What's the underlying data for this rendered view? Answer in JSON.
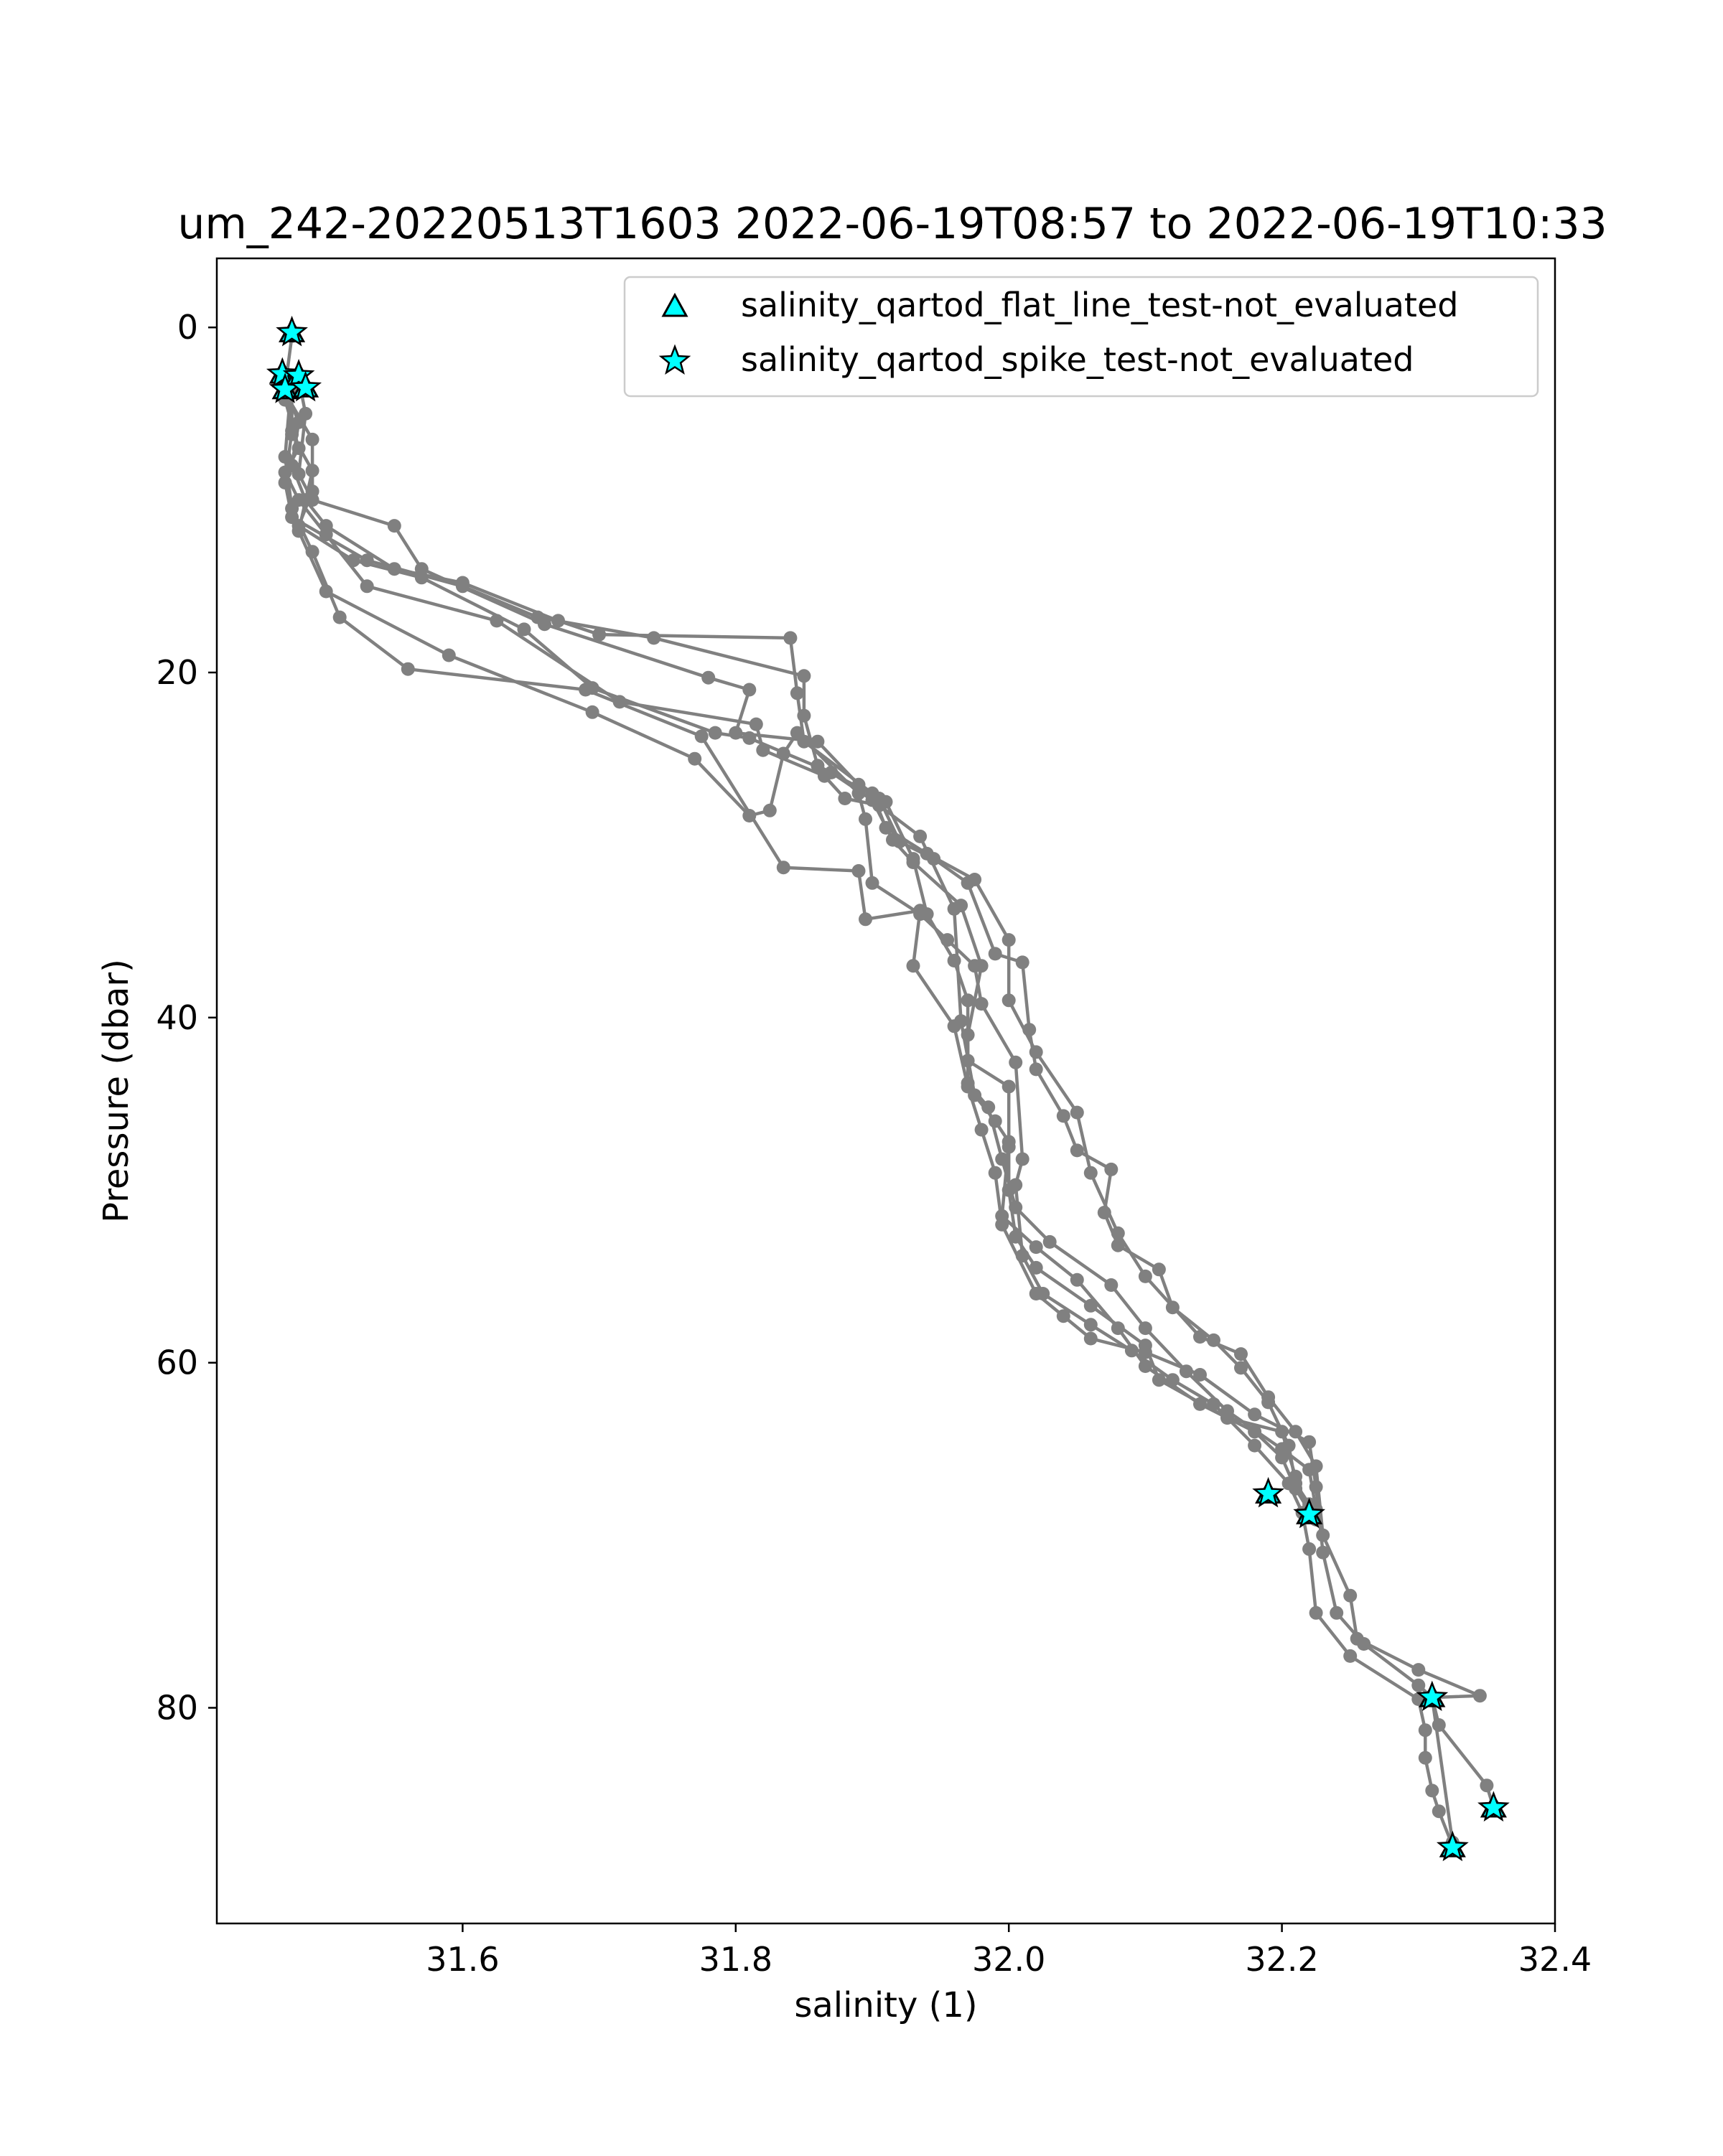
{
  "chart_data": {
    "type": "line",
    "title": "um_242-20220513T1603 2022-06-19T08:57 to 2022-06-19T10:33",
    "xlabel": "salinity (1)",
    "ylabel": "Pressure (dbar)",
    "xlim": [
      31.42,
      32.4
    ],
    "ylim": [
      92.5,
      -4
    ],
    "y_inverted": true,
    "grid": false,
    "xticks": [
      31.6,
      31.8,
      32.0,
      32.2,
      32.4
    ],
    "xtick_labels": [
      "31.6",
      "31.8",
      "32.0",
      "32.2",
      "32.4"
    ],
    "yticks": [
      0,
      20,
      40,
      60,
      80
    ],
    "ytick_labels": [
      "0",
      "20",
      "40",
      "60",
      "80"
    ],
    "legend_position": "upper right",
    "legend": [
      {
        "label": "salinity_qartod_flat_line_test-not_evaluated",
        "marker": "triangle",
        "color": "#00ffff"
      },
      {
        "label": "salinity_qartod_spike_test-not_evaluated",
        "marker": "star",
        "color": "#00ffff"
      }
    ],
    "profile_color": "#808080",
    "flag_color": "#00ffff",
    "series": [
      {
        "values": [
          [
            31.475,
            0.5
          ],
          [
            31.47,
            3.5
          ],
          [
            31.48,
            5.5
          ],
          [
            31.475,
            8
          ],
          [
            31.485,
            10
          ],
          [
            31.5,
            11.5
          ],
          [
            31.55,
            14
          ],
          [
            31.6,
            14.8
          ],
          [
            31.67,
            17
          ],
          [
            31.7,
            17.8
          ],
          [
            31.84,
            18
          ],
          [
            31.845,
            21.2
          ],
          [
            31.85,
            24
          ],
          [
            31.9,
            27
          ],
          [
            31.91,
            29
          ],
          [
            31.94,
            30.5
          ],
          [
            31.975,
            32
          ],
          [
            32.0,
            35.5
          ],
          [
            32.0,
            39
          ],
          [
            32.02,
            42
          ],
          [
            32.05,
            45.5
          ],
          [
            32.06,
            49
          ],
          [
            32.08,
            52.5
          ],
          [
            32.1,
            55
          ],
          [
            32.14,
            58.5
          ],
          [
            32.17,
            59.5
          ],
          [
            32.19,
            62
          ],
          [
            32.21,
            64
          ],
          [
            32.225,
            66
          ],
          [
            32.23,
            70
          ],
          [
            32.25,
            73.5
          ],
          [
            32.255,
            76
          ],
          [
            32.3,
            77.8
          ],
          [
            32.345,
            79.3
          ],
          [
            32.31,
            79.4
          ],
          [
            32.315,
            81
          ],
          [
            32.35,
            84.5
          ],
          [
            32.355,
            85.8
          ]
        ]
      },
      {
        "values": [
          [
            31.48,
            3
          ],
          [
            31.485,
            5
          ],
          [
            31.48,
            8.5
          ],
          [
            31.49,
            10
          ],
          [
            31.55,
            11.5
          ],
          [
            31.57,
            14
          ],
          [
            31.66,
            17.2
          ],
          [
            31.78,
            20.3
          ],
          [
            31.81,
            21
          ],
          [
            31.8,
            23.5
          ],
          [
            31.86,
            24
          ],
          [
            31.89,
            26.5
          ],
          [
            31.905,
            27.3
          ],
          [
            31.92,
            29.8
          ],
          [
            31.945,
            30.8
          ],
          [
            31.97,
            32.2
          ],
          [
            31.99,
            36.3
          ],
          [
            32.01,
            36.8
          ],
          [
            32.015,
            40.7
          ],
          [
            32.02,
            43
          ],
          [
            32.04,
            45.7
          ],
          [
            32.05,
            47.7
          ],
          [
            32.075,
            48.8
          ],
          [
            32.07,
            51.3
          ],
          [
            32.08,
            53.2
          ],
          [
            32.11,
            54.6
          ],
          [
            32.12,
            56.8
          ],
          [
            32.15,
            58.7
          ],
          [
            32.17,
            60.3
          ],
          [
            32.19,
            62.3
          ],
          [
            32.205,
            64.8
          ],
          [
            32.21,
            67
          ],
          [
            32.22,
            68.2
          ],
          [
            32.225,
            69.1
          ]
        ]
      },
      {
        "values": [
          [
            31.47,
            3.3
          ],
          [
            31.475,
            6
          ],
          [
            31.47,
            9
          ],
          [
            31.475,
            11
          ],
          [
            31.53,
            13.5
          ],
          [
            31.6,
            15
          ],
          [
            31.655,
            16.8
          ],
          [
            31.74,
            18
          ],
          [
            31.85,
            20.2
          ],
          [
            31.85,
            22.5
          ],
          [
            31.86,
            25.4
          ],
          [
            31.91,
            27.5
          ],
          [
            31.93,
            30.8
          ],
          [
            31.94,
            34
          ],
          [
            31.96,
            36.7
          ],
          [
            31.97,
            39
          ],
          [
            31.97,
            42.5
          ],
          [
            32.0,
            44
          ],
          [
            32.0,
            47.5
          ],
          [
            32.0,
            50
          ],
          [
            32.005,
            52.7
          ],
          [
            32.02,
            54.5
          ],
          [
            32.06,
            56.7
          ],
          [
            32.1,
            59
          ],
          [
            32.11,
            61
          ],
          [
            32.16,
            63.2
          ],
          [
            32.2,
            64
          ],
          [
            32.21,
            66.6
          ],
          [
            32.22,
            68.8
          ]
        ]
      },
      {
        "values": [
          [
            31.47,
            3.8
          ],
          [
            31.49,
            6.5
          ],
          [
            31.49,
            9.5
          ],
          [
            31.48,
            11.5
          ],
          [
            31.52,
            13.5
          ],
          [
            31.57,
            14.5
          ],
          [
            31.645,
            17.5
          ],
          [
            31.695,
            20.9
          ],
          [
            31.785,
            23.5
          ],
          [
            31.81,
            23.8
          ],
          [
            31.87,
            25.8
          ],
          [
            31.9,
            27.4
          ],
          [
            31.915,
            29.7
          ],
          [
            31.93,
            31
          ],
          [
            31.965,
            33.5
          ],
          [
            31.98,
            37
          ],
          [
            31.97,
            41
          ],
          [
            31.97,
            43.8
          ],
          [
            31.985,
            45.2
          ],
          [
            31.995,
            48.2
          ],
          [
            32.005,
            51
          ],
          [
            32.03,
            53
          ],
          [
            32.075,
            55.5
          ],
          [
            32.1,
            58
          ],
          [
            32.13,
            60.5
          ],
          [
            32.16,
            62.8
          ],
          [
            32.2,
            65
          ],
          [
            32.22,
            66.2
          ],
          [
            32.225,
            68.5
          ]
        ]
      },
      {
        "values": [
          [
            31.47,
            4.2
          ],
          [
            31.48,
            7
          ],
          [
            31.47,
            8.4
          ],
          [
            31.48,
            10
          ],
          [
            31.5,
            12
          ],
          [
            31.53,
            15
          ],
          [
            31.625,
            17
          ],
          [
            31.715,
            21.7
          ],
          [
            31.815,
            23
          ],
          [
            31.82,
            24.5
          ],
          [
            31.865,
            26
          ],
          [
            31.88,
            27.3
          ],
          [
            31.905,
            27.7
          ],
          [
            31.935,
            29.5
          ],
          [
            31.96,
            33.7
          ],
          [
            31.965,
            40.2
          ],
          [
            31.975,
            44.5
          ],
          [
            31.99,
            46
          ],
          [
            32.0,
            47.2
          ],
          [
            31.995,
            51.5
          ],
          [
            32.02,
            53.3
          ],
          [
            32.05,
            55.2
          ],
          [
            32.08,
            58
          ],
          [
            32.1,
            60.2
          ],
          [
            32.14,
            62.4
          ],
          [
            32.18,
            64
          ],
          [
            32.2,
            65.5
          ],
          [
            32.21,
            67.3
          ],
          [
            32.22,
            68.6
          ]
        ]
      },
      {
        "values": [
          [
            31.475,
            3.5
          ],
          [
            31.475,
            6.2
          ],
          [
            31.49,
            8.3
          ],
          [
            31.48,
            11.8
          ],
          [
            31.5,
            15.3
          ],
          [
            31.59,
            19
          ],
          [
            31.695,
            22.3
          ],
          [
            31.77,
            25
          ],
          [
            31.81,
            28.3
          ],
          [
            31.825,
            28
          ],
          [
            31.835,
            24.7
          ],
          [
            31.845,
            23.5
          ],
          [
            31.89,
            27
          ],
          [
            31.895,
            28.5
          ],
          [
            31.9,
            32.2
          ],
          [
            31.935,
            34
          ],
          [
            31.955,
            35.5
          ],
          [
            31.975,
            37
          ],
          [
            31.98,
            39.2
          ],
          [
            32.005,
            42.6
          ],
          [
            32.01,
            48.2
          ],
          [
            32.005,
            49.7
          ],
          [
            32.01,
            53.8
          ],
          [
            32.025,
            56
          ],
          [
            32.06,
            57.8
          ],
          [
            32.09,
            59.3
          ],
          [
            32.12,
            61
          ],
          [
            32.15,
            62.4
          ],
          [
            32.18,
            64.8
          ],
          [
            32.205,
            67
          ],
          [
            32.215,
            68.7
          ],
          [
            32.22,
            70.8
          ],
          [
            32.225,
            74.5
          ],
          [
            32.25,
            77
          ],
          [
            32.3,
            79.5
          ],
          [
            32.305,
            81.3
          ],
          [
            32.305,
            82.9
          ],
          [
            32.31,
            84.8
          ],
          [
            32.315,
            86
          ],
          [
            32.325,
            88
          ]
        ]
      },
      {
        "values": [
          [
            31.475,
            2.8
          ],
          [
            31.47,
            7.5
          ],
          [
            31.475,
            10.5
          ],
          [
            31.49,
            13
          ],
          [
            31.51,
            16.8
          ],
          [
            31.56,
            19.8
          ],
          [
            31.69,
            21
          ],
          [
            31.775,
            23.7
          ],
          [
            31.835,
            31.3
          ],
          [
            31.89,
            31.5
          ],
          [
            31.895,
            34.3
          ],
          [
            31.935,
            33.8
          ],
          [
            31.93,
            37
          ],
          [
            31.96,
            40.5
          ],
          [
            31.97,
            44
          ],
          [
            31.98,
            46.5
          ],
          [
            31.99,
            49
          ],
          [
            31.995,
            52
          ],
          [
            32.02,
            56
          ],
          [
            32.04,
            57.3
          ],
          [
            32.06,
            58.6
          ],
          [
            32.1,
            59.4
          ],
          [
            32.14,
            60.7
          ],
          [
            32.18,
            63
          ],
          [
            32.22,
            64.6
          ],
          [
            32.225,
            67.2
          ],
          [
            32.23,
            71
          ],
          [
            32.24,
            74.5
          ],
          [
            32.26,
            76.3
          ],
          [
            32.3,
            78.7
          ],
          [
            32.31,
            79.4
          ],
          [
            32.325,
            87.8
          ]
        ]
      }
    ],
    "flagged_points": {
      "label": "salinity_qartod_spike_test-not_evaluated",
      "values": [
        [
          31.475,
          0.3
        ],
        [
          31.468,
          2.7
        ],
        [
          31.48,
          2.8
        ],
        [
          31.47,
          3.6
        ],
        [
          31.485,
          3.5
        ],
        [
          32.19,
          67.6
        ],
        [
          32.22,
          68.8
        ],
        [
          32.31,
          79.4
        ],
        [
          32.355,
          85.8
        ],
        [
          32.325,
          88.1
        ]
      ]
    }
  }
}
